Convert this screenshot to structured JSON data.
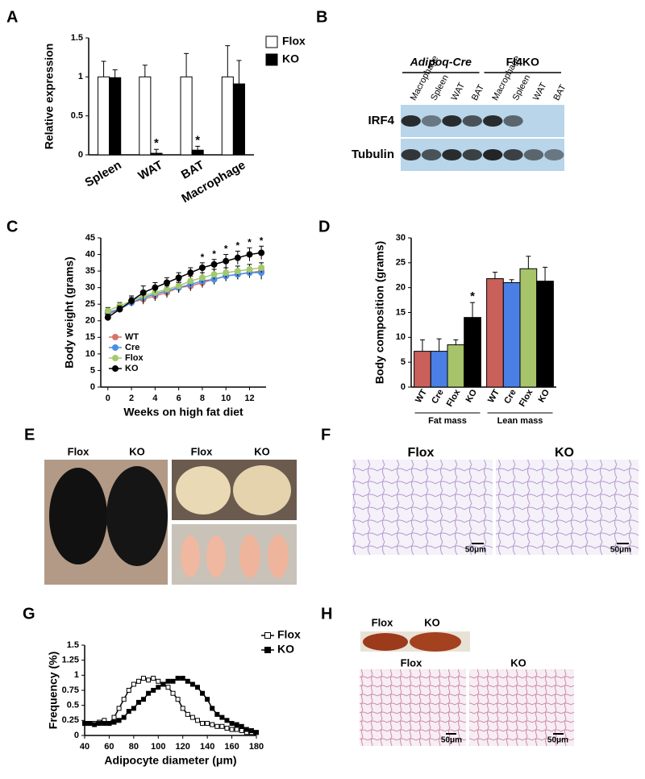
{
  "panel_labels": [
    "A",
    "B",
    "C",
    "D",
    "E",
    "F",
    "G",
    "H"
  ],
  "chart_data": [
    {
      "type": "bar",
      "ylabel": "Relative expression",
      "categories": [
        "Spleen",
        "WAT",
        "BAT",
        "Macrophage"
      ],
      "series": [
        {
          "name": "Flox",
          "color": "#ffffff",
          "values": [
            1,
            1,
            1,
            1
          ],
          "errors": [
            0.2,
            0.15,
            0.3,
            0.4
          ]
        },
        {
          "name": "KO",
          "color": "#000000",
          "values": [
            0.99,
            0.02,
            0.06,
            0.91
          ],
          "errors": [
            0.1,
            0.05,
            0.05,
            0.3
          ],
          "significance": [
            null,
            "*",
            "*",
            null
          ]
        }
      ],
      "ylim": [
        0,
        1.5
      ],
      "yticks": [
        0,
        0.5,
        1,
        1.5
      ],
      "legend": "right"
    },
    {
      "type": "line",
      "xlabel": "Weeks on high fat diet",
      "ylabel": "Body weight (grams)",
      "x": [
        0,
        1,
        2,
        3,
        4,
        5,
        6,
        7,
        8,
        9,
        10,
        11,
        12,
        13
      ],
      "series": [
        {
          "name": "WT",
          "color": "#d9736a",
          "marker": "circle",
          "filled": true,
          "values": [
            22,
            23.5,
            25.5,
            26.5,
            27.5,
            28.5,
            30,
            30.5,
            31.5,
            32.5,
            33.5,
            34,
            34.5,
            35
          ],
          "errors": [
            1,
            1,
            1,
            1.5,
            1.5,
            1.5,
            1.5,
            1.5,
            1.5,
            1.5,
            1.5,
            1.5,
            1.5,
            1.5
          ]
        },
        {
          "name": "Cre",
          "color": "#4a8ee6",
          "marker": "circle",
          "filled": true,
          "values": [
            22.5,
            23.5,
            25.5,
            27,
            28,
            29,
            30,
            31,
            32,
            32.5,
            33.5,
            34,
            34.5,
            34.5
          ],
          "errors": [
            1,
            1,
            1,
            1.5,
            1.5,
            1.5,
            1.5,
            1.5,
            1.5,
            1.5,
            1.5,
            1.5,
            1.5,
            2
          ]
        },
        {
          "name": "Flox",
          "color": "#a3c96a",
          "marker": "circle",
          "filled": true,
          "values": [
            23,
            24.5,
            26,
            27.5,
            28.5,
            29.5,
            30.5,
            32,
            33,
            34,
            34.5,
            35,
            35.5,
            36
          ],
          "errors": [
            1,
            1,
            1,
            1.5,
            1.5,
            1.5,
            1.5,
            1.5,
            1.5,
            1.5,
            1.5,
            1.5,
            1.5,
            1.5
          ]
        },
        {
          "name": "KO",
          "color": "#000000",
          "marker": "circle",
          "filled": true,
          "values": [
            21,
            23.5,
            26,
            28.5,
            30,
            31.5,
            33,
            34.5,
            36,
            37,
            38,
            39,
            40,
            40.5
          ],
          "errors": [
            1,
            1,
            1.5,
            2,
            1.5,
            1.5,
            1.5,
            1.5,
            1.5,
            1.5,
            2,
            2,
            2,
            2
          ],
          "significance": [
            null,
            null,
            null,
            null,
            null,
            null,
            null,
            null,
            "*",
            "*",
            "*",
            "*",
            "*",
            "*"
          ]
        }
      ],
      "xlim": [
        -0.6,
        13.4
      ],
      "xticks": [
        0,
        2,
        4,
        6,
        8,
        10,
        12
      ],
      "ylim": [
        0,
        45
      ],
      "yticks": [
        0,
        5,
        10,
        15,
        20,
        25,
        30,
        35,
        40,
        45
      ],
      "legend": "lower left"
    },
    {
      "type": "bar",
      "ylabel": "Body composition (grams)",
      "categories": [
        "Fat mass",
        "Lean mass"
      ],
      "series": [
        {
          "name": "WT",
          "color": "#c9605a",
          "values": [
            7.2,
            21.8
          ],
          "errors": [
            2.3,
            1.3
          ]
        },
        {
          "name": "Cre",
          "color": "#4a7fe6",
          "values": [
            7.2,
            21
          ],
          "errors": [
            2.5,
            0.6
          ]
        },
        {
          "name": "Flox",
          "color": "#a7c46a",
          "values": [
            8.5,
            23.8
          ],
          "errors": [
            1,
            2.5
          ]
        },
        {
          "name": "KO",
          "color": "#000000",
          "values": [
            14,
            21.3
          ],
          "errors": [
            3,
            2.8
          ],
          "significance": [
            "*",
            null
          ]
        }
      ],
      "ylim": [
        0,
        30
      ],
      "yticks": [
        0,
        5,
        10,
        15,
        20,
        25,
        30
      ],
      "series_labels_under_bars": true
    },
    {
      "type": "line",
      "xlabel": "Adipocyte diameter (μm)",
      "ylabel": "Frequency (%)",
      "x": [
        40,
        44,
        48,
        52,
        56,
        60,
        64,
        68,
        72,
        76,
        80,
        84,
        88,
        92,
        96,
        100,
        104,
        108,
        112,
        116,
        120,
        124,
        128,
        132,
        136,
        140,
        144,
        148,
        152,
        156,
        160,
        164,
        168,
        172,
        176,
        180
      ],
      "series": [
        {
          "name": "Flox",
          "color": "#000000",
          "marker": "square",
          "filled": false,
          "values": [
            0.2,
            0.2,
            0.2,
            0.22,
            0.25,
            0.2,
            0.3,
            0.45,
            0.6,
            0.75,
            0.85,
            0.9,
            0.95,
            0.92,
            0.95,
            0.9,
            0.85,
            0.8,
            0.7,
            0.6,
            0.45,
            0.35,
            0.3,
            0.25,
            0.2,
            0.2,
            0.18,
            0.15,
            0.15,
            0.12,
            0.1,
            0.1,
            0.08,
            0.05,
            0.05,
            0.05
          ]
        },
        {
          "name": "KO",
          "color": "#000000",
          "marker": "square",
          "filled": true,
          "values": [
            0.2,
            0.2,
            0.18,
            0.2,
            0.2,
            0.2,
            0.22,
            0.25,
            0.3,
            0.4,
            0.45,
            0.55,
            0.6,
            0.7,
            0.75,
            0.8,
            0.85,
            0.9,
            0.9,
            0.95,
            0.95,
            0.9,
            0.85,
            0.8,
            0.7,
            0.6,
            0.45,
            0.35,
            0.3,
            0.25,
            0.2,
            0.18,
            0.15,
            0.1,
            0.08,
            0.05
          ]
        }
      ],
      "xlim": [
        40,
        180
      ],
      "xticks": [
        40,
        60,
        80,
        100,
        120,
        140,
        160,
        180
      ],
      "ylim": [
        0,
        1.5
      ],
      "yticks": [
        0,
        0.25,
        0.5,
        0.75,
        1,
        1.25,
        1.5
      ],
      "legend": "upper right"
    }
  ],
  "blot": {
    "groups": [
      "Adipoq-Cre",
      "Fl4KO"
    ],
    "lanes": [
      "Macrophage",
      "Spleen",
      "WAT",
      "BAT",
      "Macrophage",
      "Spleen",
      "WAT",
      "BAT"
    ],
    "rows": [
      "IRF4",
      "Tubulin"
    ]
  },
  "photos": {
    "E": {
      "labels": [
        "Flox",
        "KO",
        "Flox",
        "KO"
      ]
    },
    "F": {
      "labels": [
        "Flox",
        "KO"
      ],
      "scale": "50μm"
    },
    "H": {
      "top_labels": [
        "Flox",
        "KO"
      ],
      "labels": [
        "Flox",
        "KO"
      ],
      "scale": "50μm"
    }
  }
}
